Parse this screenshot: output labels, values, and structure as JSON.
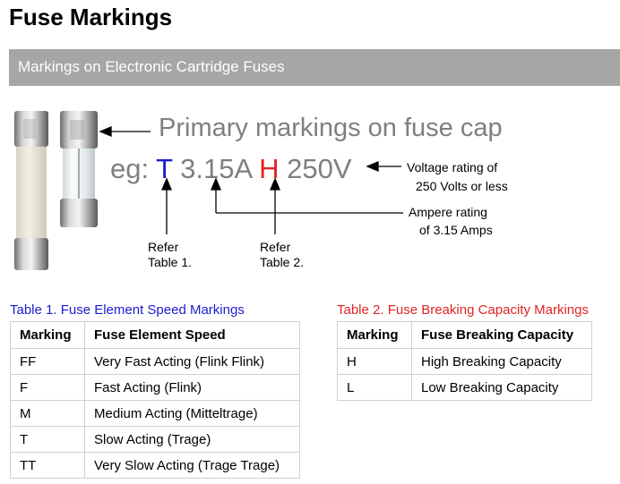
{
  "page": {
    "title": "Fuse Markings"
  },
  "banner": {
    "text": "Markings on Electronic Cartridge Fuses"
  },
  "figure": {
    "primary_text": "Primary markings on fuse cap",
    "example": {
      "prefix": "eg: ",
      "speed": "T",
      "amps": "3.15A",
      "capacity": "H",
      "voltage": "250V"
    },
    "voltage_note": {
      "line1": "Voltage rating of",
      "line2": "250 Volts or less"
    },
    "ampere_note": {
      "line1": "Ampere rating",
      "line2": "of 3.15 Amps"
    },
    "refer1": {
      "line1": "Refer",
      "line2": "Table 1."
    },
    "refer2": {
      "line1": "Refer",
      "line2": "Table 2."
    },
    "colors": {
      "speed": "#1c1ccc",
      "capacity": "#e02424",
      "gray_text": "#7f7f7f"
    }
  },
  "table1": {
    "caption": "Table 1. Fuse Element Speed Markings",
    "caption_color": "#1c1ccc",
    "headers": [
      "Marking",
      "Fuse Element Speed"
    ],
    "rows": [
      [
        "FF",
        "Very Fast Acting (Flink Flink)"
      ],
      [
        "F",
        "Fast Acting (Flink)"
      ],
      [
        "M",
        "Medium Acting (Mitteltrage)"
      ],
      [
        "T",
        "Slow Acting (Trage)"
      ],
      [
        "TT",
        "Very Slow Acting (Trage Trage)"
      ]
    ]
  },
  "table2": {
    "caption": "Table 2. Fuse Breaking Capacity Markings",
    "caption_color": "#e02424",
    "headers": [
      "Marking",
      "Fuse Breaking Capacity"
    ],
    "rows": [
      [
        "H",
        "High Breaking Capacity"
      ],
      [
        "L",
        "Low Breaking Capacity"
      ]
    ]
  }
}
